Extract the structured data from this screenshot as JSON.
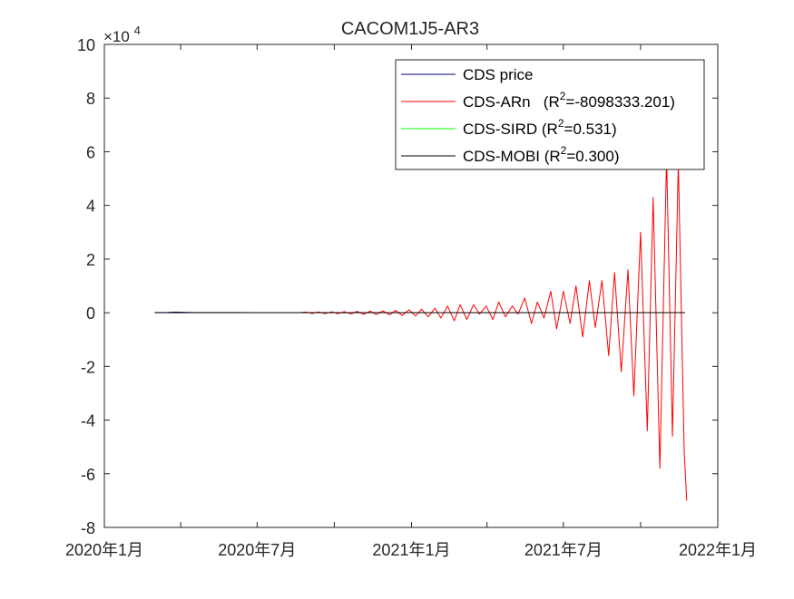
{
  "chart_data": {
    "type": "line",
    "title": "CACOM1J5-AR3",
    "xlabel": "",
    "ylabel": "",
    "y_exponent_base": "×10",
    "y_exponent_power": "4",
    "xlim": [
      "2020-01-01",
      "2022-01-01"
    ],
    "ylim": [
      -80000,
      100000
    ],
    "x_ticks": [
      {
        "date": "2020-01-01",
        "label": "2020年1月"
      },
      {
        "date": "2020-04-01",
        "label": ""
      },
      {
        "date": "2020-07-01",
        "label": "2020年7月"
      },
      {
        "date": "2020-10-01",
        "label": ""
      },
      {
        "date": "2021-01-01",
        "label": "2021年1月"
      },
      {
        "date": "2021-04-01",
        "label": ""
      },
      {
        "date": "2021-07-01",
        "label": "2021年7月"
      },
      {
        "date": "2021-10-01",
        "label": ""
      },
      {
        "date": "2022-01-01",
        "label": "2022年1月"
      }
    ],
    "y_ticks": [
      {
        "value": 100000,
        "label": "10"
      },
      {
        "value": 80000,
        "label": "8"
      },
      {
        "value": 60000,
        "label": "6"
      },
      {
        "value": 40000,
        "label": "4"
      },
      {
        "value": 20000,
        "label": "2"
      },
      {
        "value": 0,
        "label": "0"
      },
      {
        "value": -20000,
        "label": "-2"
      },
      {
        "value": -40000,
        "label": "-4"
      },
      {
        "value": -60000,
        "label": "-6"
      },
      {
        "value": -80000,
        "label": "-8"
      }
    ],
    "grid": false,
    "legend_position": "top-right",
    "legend": [
      {
        "label": "CDS price",
        "sup": "",
        "suffix": ""
      },
      {
        "label": "CDS-ARn   (R",
        "sup": "2",
        "suffix": "=-8098333.201)"
      },
      {
        "label": "CDS-SIRD (R",
        "sup": "2",
        "suffix": "=0.531)"
      },
      {
        "label": "CDS-MOBI (R",
        "sup": "2",
        "suffix": "=0.300)"
      }
    ],
    "series": [
      {
        "name": "CDS price",
        "color": "#00007f",
        "x": [
          "2020-03-01",
          "2020-03-15",
          "2020-03-25",
          "2020-04-05",
          "2020-04-15",
          "2020-05-01",
          "2020-06-01",
          "2020-07-01",
          "2020-08-01",
          "2020-09-01",
          "2020-10-01",
          "2020-11-01",
          "2020-12-01",
          "2021-01-01",
          "2021-02-01",
          "2021-03-01",
          "2021-04-01",
          "2021-05-01",
          "2021-06-01",
          "2021-07-01",
          "2021-08-01",
          "2021-09-01",
          "2021-10-01",
          "2021-11-01",
          "2021-11-23"
        ],
        "y": [
          60,
          80,
          250,
          180,
          90,
          70,
          60,
          55,
          50,
          50,
          48,
          45,
          45,
          45,
          44,
          44,
          43,
          42,
          42,
          42,
          41,
          41,
          40,
          40,
          40
        ]
      },
      {
        "name": "CDS-ARn",
        "color": "#ff0000",
        "x": [
          "2020-08-20",
          "2020-08-28",
          "2020-09-05",
          "2020-09-12",
          "2020-09-20",
          "2020-09-28",
          "2020-10-05",
          "2020-10-13",
          "2020-10-21",
          "2020-10-28",
          "2020-11-05",
          "2020-11-13",
          "2020-11-20",
          "2020-11-28",
          "2020-12-06",
          "2020-12-13",
          "2020-12-21",
          "2020-12-29",
          "2021-01-06",
          "2021-01-13",
          "2021-01-21",
          "2021-01-29",
          "2021-02-05",
          "2021-02-13",
          "2021-02-21",
          "2021-02-28",
          "2021-03-08",
          "2021-03-16",
          "2021-03-23",
          "2021-03-31",
          "2021-04-08",
          "2021-04-15",
          "2021-04-23",
          "2021-05-01",
          "2021-05-08",
          "2021-05-16",
          "2021-05-24",
          "2021-05-31",
          "2021-06-08",
          "2021-06-16",
          "2021-06-23",
          "2021-07-01",
          "2021-07-09",
          "2021-07-16",
          "2021-07-24",
          "2021-08-01",
          "2021-08-08",
          "2021-08-16",
          "2021-08-24",
          "2021-08-31",
          "2021-09-08",
          "2021-09-16",
          "2021-09-23",
          "2021-10-01",
          "2021-10-09",
          "2021-10-16",
          "2021-10-24",
          "2021-11-01",
          "2021-11-08",
          "2021-11-15",
          "2021-11-22",
          "2021-11-25"
        ],
        "y": [
          0,
          250,
          -250,
          300,
          -300,
          350,
          -350,
          400,
          -450,
          500,
          -550,
          600,
          -650,
          700,
          -800,
          900,
          -1000,
          1100,
          -1200,
          1300,
          -1500,
          1700,
          -2000,
          2500,
          -3000,
          3000,
          -2500,
          3000,
          -500,
          2500,
          -2500,
          4000,
          -1500,
          2500,
          -500,
          5500,
          -4000,
          4000,
          -2000,
          8000,
          -6000,
          8000,
          -4000,
          10000,
          -9000,
          12000,
          -5500,
          12000,
          -16000,
          15000,
          -22000,
          16000,
          -31000,
          30000,
          -44000,
          43000,
          -58000,
          58000,
          -46000,
          56000,
          -52000,
          -70000
        ]
      },
      {
        "name": "CDS-SIRD",
        "color": "#00ff00",
        "x": [
          "2020-03-01",
          "2020-06-01",
          "2020-09-01",
          "2020-12-01",
          "2021-03-01",
          "2021-06-01",
          "2021-09-01",
          "2021-11-23"
        ],
        "y": [
          40,
          42,
          42,
          43,
          43,
          42,
          42,
          42
        ]
      },
      {
        "name": "CDS-MOBI",
        "color": "#000000",
        "x": [
          "2020-03-01",
          "2020-06-01",
          "2020-09-01",
          "2020-12-01",
          "2021-03-01",
          "2021-06-01",
          "2021-09-01",
          "2021-11-23"
        ],
        "y": [
          45,
          45,
          45,
          44,
          44,
          44,
          44,
          44
        ]
      }
    ]
  }
}
